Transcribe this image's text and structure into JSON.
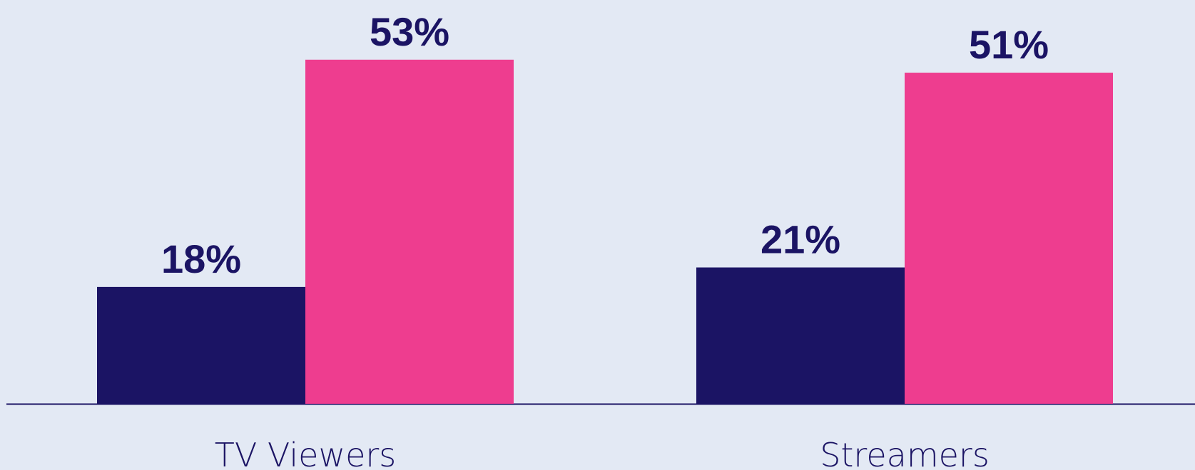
{
  "chart_data": {
    "type": "bar",
    "categories": [
      "TV Viewers",
      "Streamers"
    ],
    "series": [
      {
        "color": "#1b1464",
        "values": [
          18,
          21
        ],
        "value_labels": [
          "18%",
          "21%"
        ]
      },
      {
        "color": "#ee3d8f",
        "values": [
          53,
          51
        ],
        "value_labels": [
          "53%",
          "51%"
        ]
      }
    ],
    "ylim": [
      0,
      60
    ]
  }
}
